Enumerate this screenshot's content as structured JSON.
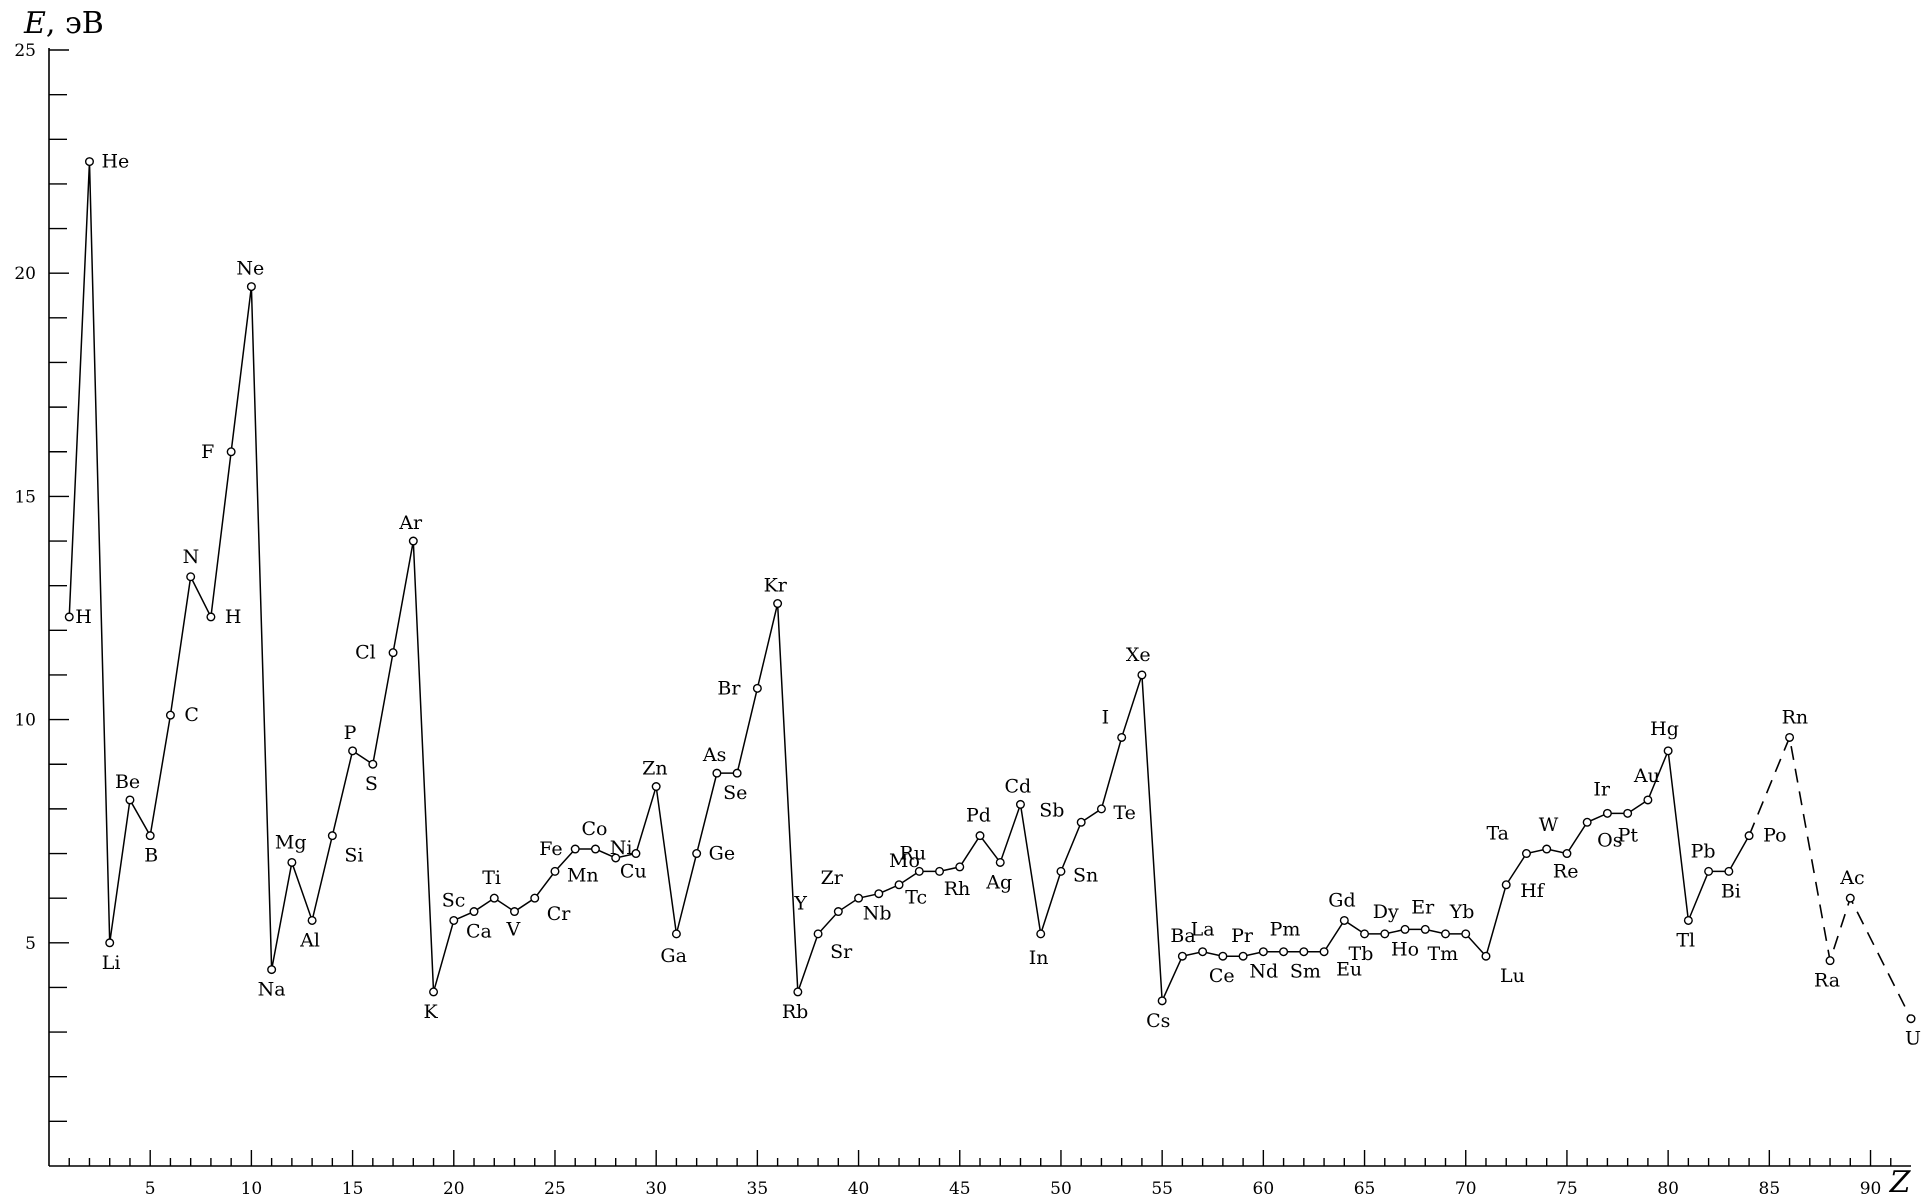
{
  "chart_data": {
    "type": "line",
    "xlabel": "Z",
    "ylabel_italic": "E",
    "ylabel_unit": ", эВ",
    "xlim": [
      0,
      92
    ],
    "ylim": [
      0,
      25
    ],
    "x_ticks": [
      5,
      10,
      15,
      20,
      25,
      30,
      35,
      40,
      45,
      50,
      55,
      60,
      65,
      70,
      75,
      80,
      85,
      90
    ],
    "y_ticks": [
      5,
      10,
      15,
      20,
      25
    ],
    "solid_segment_last_z": 84,
    "points": [
      {
        "z": 1,
        "e": 12.3,
        "label": "H"
      },
      {
        "z": 2,
        "e": 22.5,
        "label": "He"
      },
      {
        "z": 3,
        "e": 5.0,
        "label": "Li"
      },
      {
        "z": 4,
        "e": 8.2,
        "label": "Be"
      },
      {
        "z": 5,
        "e": 7.4,
        "label": "B"
      },
      {
        "z": 6,
        "e": 10.1,
        "label": "C"
      },
      {
        "z": 7,
        "e": 13.2,
        "label": "N"
      },
      {
        "z": 8,
        "e": 12.3,
        "label": "H"
      },
      {
        "z": 9,
        "e": 16.0,
        "label": "F"
      },
      {
        "z": 10,
        "e": 19.7,
        "label": "Ne"
      },
      {
        "z": 11,
        "e": 4.4,
        "label": "Na"
      },
      {
        "z": 12,
        "e": 6.8,
        "label": "Mg"
      },
      {
        "z": 13,
        "e": 5.5,
        "label": "Al"
      },
      {
        "z": 14,
        "e": 7.4,
        "label": "Si"
      },
      {
        "z": 15,
        "e": 9.3,
        "label": "P"
      },
      {
        "z": 16,
        "e": 9.0,
        "label": "S"
      },
      {
        "z": 17,
        "e": 11.5,
        "label": "Cl"
      },
      {
        "z": 18,
        "e": 14.0,
        "label": "Ar"
      },
      {
        "z": 19,
        "e": 3.9,
        "label": "K"
      },
      {
        "z": 20,
        "e": 5.5,
        "label": "Sc"
      },
      {
        "z": 21,
        "e": 5.7,
        "label": "Ca"
      },
      {
        "z": 22,
        "e": 6.0,
        "label": "Ti"
      },
      {
        "z": 23,
        "e": 5.7,
        "label": "V"
      },
      {
        "z": 24,
        "e": 6.0,
        "label": "Cr"
      },
      {
        "z": 25,
        "e": 6.6,
        "label": "Mn"
      },
      {
        "z": 26,
        "e": 7.1,
        "label": "Fe"
      },
      {
        "z": 27,
        "e": 7.1,
        "label": "Co"
      },
      {
        "z": 28,
        "e": 6.9,
        "label": "Ni"
      },
      {
        "z": 29,
        "e": 7.0,
        "label": "Cu"
      },
      {
        "z": 30,
        "e": 8.5,
        "label": "Zn"
      },
      {
        "z": 31,
        "e": 5.2,
        "label": "Ga"
      },
      {
        "z": 32,
        "e": 7.0,
        "label": "Ge"
      },
      {
        "z": 33,
        "e": 8.8,
        "label": "As"
      },
      {
        "z": 34,
        "e": 8.8,
        "label": "Se"
      },
      {
        "z": 35,
        "e": 10.7,
        "label": "Br"
      },
      {
        "z": 36,
        "e": 12.6,
        "label": "Kr"
      },
      {
        "z": 37,
        "e": 3.9,
        "label": "Rb"
      },
      {
        "z": 38,
        "e": 5.2,
        "label": "Sr"
      },
      {
        "z": 39,
        "e": 5.7,
        "label": "Y"
      },
      {
        "z": 40,
        "e": 6.0,
        "label": "Zr"
      },
      {
        "z": 41,
        "e": 6.1,
        "label": "Nb"
      },
      {
        "z": 42,
        "e": 6.3,
        "label": "Mo"
      },
      {
        "z": 43,
        "e": 6.6,
        "label": "Tc"
      },
      {
        "z": 44,
        "e": 6.6,
        "label": "Ru"
      },
      {
        "z": 45,
        "e": 6.7,
        "label": "Rh"
      },
      {
        "z": 46,
        "e": 7.4,
        "label": "Pd"
      },
      {
        "z": 47,
        "e": 6.8,
        "label": "Ag"
      },
      {
        "z": 48,
        "e": 8.1,
        "label": "Cd"
      },
      {
        "z": 49,
        "e": 5.2,
        "label": "In"
      },
      {
        "z": 50,
        "e": 6.6,
        "label": "Sn"
      },
      {
        "z": 51,
        "e": 7.7,
        "label": "Sb"
      },
      {
        "z": 52,
        "e": 8.0,
        "label": "Te"
      },
      {
        "z": 53,
        "e": 9.6,
        "label": "I"
      },
      {
        "z": 54,
        "e": 11.0,
        "label": "Xe"
      },
      {
        "z": 55,
        "e": 3.7,
        "label": "Cs"
      },
      {
        "z": 56,
        "e": 4.7,
        "label": "Ba"
      },
      {
        "z": 57,
        "e": 4.8,
        "label": "La"
      },
      {
        "z": 58,
        "e": 4.7,
        "label": "Ce"
      },
      {
        "z": 59,
        "e": 4.7,
        "label": "Pr"
      },
      {
        "z": 60,
        "e": 4.8,
        "label": "Nd"
      },
      {
        "z": 61,
        "e": 4.8,
        "label": "Pm"
      },
      {
        "z": 62,
        "e": 4.8,
        "label": "Sm"
      },
      {
        "z": 63,
        "e": 4.8,
        "label": "Eu"
      },
      {
        "z": 64,
        "e": 5.5,
        "label": "Gd"
      },
      {
        "z": 65,
        "e": 5.2,
        "label": "Tb"
      },
      {
        "z": 66,
        "e": 5.2,
        "label": "Dy"
      },
      {
        "z": 67,
        "e": 5.3,
        "label": "Ho"
      },
      {
        "z": 68,
        "e": 5.3,
        "label": "Er"
      },
      {
        "z": 69,
        "e": 5.2,
        "label": "Tm"
      },
      {
        "z": 70,
        "e": 5.2,
        "label": "Yb"
      },
      {
        "z": 71,
        "e": 4.7,
        "label": "Lu"
      },
      {
        "z": 72,
        "e": 6.3,
        "label": "Hf"
      },
      {
        "z": 73,
        "e": 7.0,
        "label": "Ta"
      },
      {
        "z": 74,
        "e": 7.1,
        "label": "W"
      },
      {
        "z": 75,
        "e": 7.0,
        "label": "Re"
      },
      {
        "z": 76,
        "e": 7.7,
        "label": "Os"
      },
      {
        "z": 77,
        "e": 7.9,
        "label": "Ir"
      },
      {
        "z": 78,
        "e": 7.9,
        "label": "Pt"
      },
      {
        "z": 79,
        "e": 8.2,
        "label": "Au"
      },
      {
        "z": 80,
        "e": 9.3,
        "label": "Hg"
      },
      {
        "z": 81,
        "e": 5.5,
        "label": "Tl"
      },
      {
        "z": 82,
        "e": 6.6,
        "label": "Pb"
      },
      {
        "z": 83,
        "e": 6.6,
        "label": "Bi"
      },
      {
        "z": 84,
        "e": 7.4,
        "label": "Po"
      },
      {
        "z": 86,
        "e": 9.6,
        "label": "Rn"
      },
      {
        "z": 88,
        "e": 4.6,
        "label": "Ra"
      },
      {
        "z": 89,
        "e": 6.0,
        "label": "Ac"
      },
      {
        "z": 92,
        "e": 3.3,
        "label": "U"
      }
    ]
  }
}
